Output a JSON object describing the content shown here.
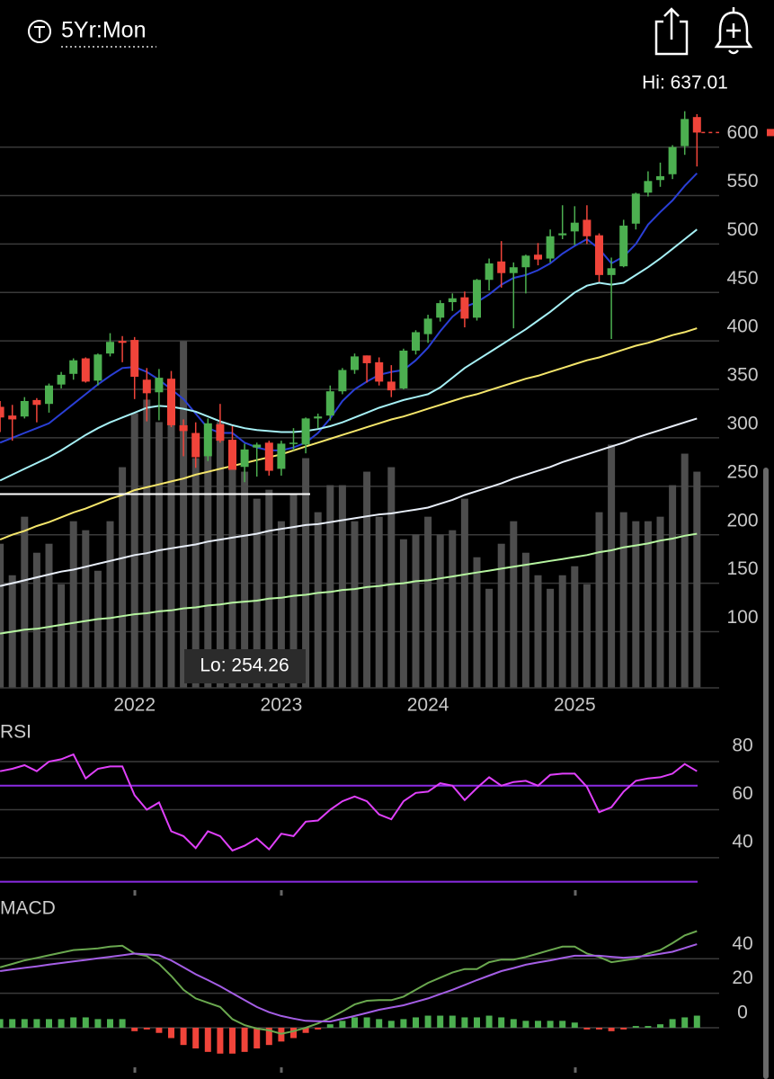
{
  "header": {
    "timeframe": "5Yr:Mon"
  },
  "chart_data": [
    {
      "type": "candlestick",
      "annotations": [
        "Hi: 637.01",
        "Lo: 254.26"
      ],
      "categories": [
        null,
        null,
        null,
        null,
        null,
        null,
        null,
        null,
        null,
        null,
        null,
        "2022",
        null,
        null,
        null,
        null,
        null,
        null,
        null,
        null,
        null,
        null,
        null,
        "2023",
        null,
        null,
        null,
        null,
        null,
        null,
        null,
        null,
        null,
        null,
        null,
        "2024",
        null,
        null,
        null,
        null,
        null,
        null,
        null,
        null,
        null,
        null,
        null,
        "2025",
        null,
        null,
        null,
        null,
        null,
        null,
        null,
        null,
        null,
        null
      ],
      "open": [
        332,
        323,
        322,
        339,
        335,
        355,
        366,
        382,
        359,
        387,
        400,
        401,
        360,
        347,
        361,
        313,
        305,
        281,
        314,
        298,
        270,
        290,
        295,
        268,
        294,
        293,
        320,
        323,
        348,
        370,
        385,
        378,
        358,
        351,
        390,
        407,
        424,
        440,
        445,
        424,
        463,
        482,
        470,
        476,
        489,
        485,
        509,
        513,
        525,
        509,
        468,
        477,
        521,
        553,
        566,
        572,
        601,
        631
      ],
      "high": [
        338,
        334,
        342,
        341,
        356,
        368,
        382,
        383,
        387,
        408,
        405,
        404,
        372,
        371,
        369,
        319,
        316,
        320,
        335,
        312,
        294,
        295,
        297,
        297,
        310,
        321,
        325,
        354,
        372,
        387,
        385,
        383,
        375,
        392,
        411,
        427,
        442,
        449,
        451,
        464,
        485,
        503,
        481,
        489,
        501,
        515,
        540,
        539,
        540,
        511,
        486,
        525,
        553,
        575,
        584,
        602,
        637.01,
        634
      ],
      "low": [
        306,
        297,
        320,
        316,
        326,
        351,
        360,
        357,
        354,
        384,
        378,
        340,
        317,
        318,
        311,
        281,
        269,
        276,
        295,
        267,
        254.26,
        260,
        261,
        261,
        287,
        284,
        310,
        318,
        345,
        366,
        357,
        354,
        342,
        350,
        386,
        398,
        420,
        431,
        414,
        421,
        452,
        455,
        413,
        449,
        478,
        481,
        505,
        499,
        500,
        461,
        402,
        476,
        515,
        549,
        559,
        567,
        592,
        580
      ],
      "close": [
        321,
        319,
        338,
        334,
        354,
        365,
        380,
        358,
        386,
        399,
        398,
        363,
        346,
        362,
        313,
        307,
        280,
        315,
        297,
        267,
        288,
        293,
        266,
        294,
        295,
        320,
        322,
        348,
        370,
        384,
        377,
        358,
        349,
        390,
        409,
        423,
        439,
        444,
        423,
        463,
        480,
        470,
        476,
        488,
        484,
        508,
        511,
        522,
        508,
        468,
        475,
        519,
        552,
        565,
        570,
        600,
        629,
        615
      ],
      "up_color": "#4caf50",
      "down_color": "#f0443a",
      "volume": [
        160,
        125,
        190,
        150,
        160,
        115,
        185,
        175,
        130,
        185,
        245,
        305,
        320,
        295,
        315,
        385,
        255,
        275,
        295,
        265,
        240,
        210,
        220,
        185,
        215,
        255,
        195,
        225,
        225,
        185,
        240,
        190,
        245,
        165,
        170,
        190,
        170,
        175,
        210,
        145,
        110,
        160,
        185,
        150,
        125,
        110,
        125,
        135,
        115,
        195,
        270,
        195,
        185,
        185,
        190,
        225,
        260,
        240
      ],
      "volume_color": "#4d4d4d",
      "series": [
        {
          "color": "#2a3fd6",
          "values": [
            295,
            300,
            305,
            310,
            315,
            325,
            335,
            345,
            355,
            364,
            372,
            373,
            368,
            360,
            350,
            340,
            325,
            310,
            305,
            305,
            295,
            290,
            287,
            287,
            290,
            295,
            305,
            320,
            338,
            350,
            358,
            365,
            368,
            370,
            380,
            393,
            410,
            425,
            435,
            440,
            448,
            458,
            465,
            468,
            473,
            480,
            490,
            498,
            505,
            495,
            480,
            487,
            500,
            520,
            533,
            545,
            560,
            573
          ]
        },
        {
          "color": "#a6f0f5",
          "values": [
            256,
            262,
            268,
            274,
            280,
            287,
            295,
            303,
            310,
            316,
            321,
            326,
            331,
            333,
            332,
            330,
            327,
            322,
            317,
            313,
            310,
            308,
            307,
            306,
            306,
            307,
            309,
            312,
            316,
            321,
            326,
            331,
            335,
            339,
            342,
            345,
            352,
            362,
            372,
            380,
            388,
            396,
            404,
            412,
            421,
            430,
            440,
            450,
            457,
            460,
            458,
            460,
            468,
            476,
            485,
            495,
            505,
            515
          ]
        },
        {
          "color": "#f5e66b",
          "values": [
            195,
            200,
            204,
            209,
            213,
            218,
            223,
            227,
            232,
            237,
            241,
            246,
            249,
            252,
            255,
            258,
            262,
            265,
            268,
            271,
            274,
            277,
            280,
            283,
            287,
            291,
            295,
            299,
            303,
            307,
            311,
            315,
            319,
            322,
            326,
            330,
            334,
            338,
            342,
            345,
            349,
            353,
            357,
            361,
            364,
            368,
            372,
            376,
            380,
            383,
            387,
            391,
            395,
            398,
            402,
            406,
            409,
            413
          ]
        },
        {
          "color": "#e8eef8",
          "values": [
            147,
            150,
            153,
            156,
            159,
            162,
            164,
            167,
            170,
            173,
            176,
            179,
            181,
            184,
            186,
            188,
            190,
            193,
            195,
            197,
            199,
            201,
            204,
            206,
            208,
            210,
            211,
            213,
            215,
            217,
            219,
            221,
            222,
            224,
            226,
            228,
            232,
            236,
            241,
            245,
            249,
            253,
            258,
            262,
            266,
            270,
            275,
            279,
            283,
            287,
            291,
            295,
            300,
            304,
            308,
            312,
            316,
            320
          ]
        },
        {
          "color": "#b6f5a0",
          "values": [
            98,
            100,
            102,
            103,
            105,
            107,
            109,
            111,
            113,
            114,
            116,
            118,
            119,
            121,
            122,
            124,
            125,
            127,
            128,
            130,
            131,
            132,
            134,
            135,
            137,
            138,
            140,
            141,
            143,
            144,
            146,
            147,
            149,
            150,
            152,
            153,
            155,
            157,
            159,
            161,
            163,
            165,
            167,
            169,
            171,
            173,
            175,
            177,
            179,
            182,
            184,
            187,
            189,
            191,
            194,
            196,
            199,
            201
          ]
        }
      ],
      "level": 242,
      "level_color": "#ffffff",
      "ylim": [
        42,
        659
      ],
      "yticks": [
        100,
        150,
        200,
        250,
        300,
        350,
        400,
        450,
        500,
        550,
        600
      ],
      "grid": true
    },
    {
      "type": "rsi",
      "title": "RSI",
      "values": [
        76,
        77,
        78.5,
        76,
        80,
        81,
        83,
        73,
        77,
        78,
        78,
        66,
        60,
        63,
        51,
        49,
        44,
        51,
        49,
        43,
        45,
        48,
        43.5,
        50,
        49,
        55,
        55.5,
        60,
        63.5,
        65.5,
        63.5,
        58,
        56,
        63.5,
        67,
        67.5,
        71,
        70,
        64,
        69,
        73.5,
        70,
        71.5,
        72,
        70,
        74.5,
        75,
        75,
        69.5,
        59,
        61,
        67.5,
        72,
        73,
        73.5,
        75,
        79,
        76
      ],
      "color": "#e040fb",
      "bands": [
        70,
        30
      ],
      "band_color": "#8a2be2",
      "ylim": [
        26.5,
        97.6
      ],
      "yticks": [
        40,
        60,
        80
      ],
      "grid": true
    },
    {
      "type": "macd",
      "title": "MACD",
      "series": [
        {
          "color": "#6aa84f",
          "values": [
            35,
            37,
            39,
            40.5,
            42,
            43.5,
            45,
            45.5,
            46,
            47,
            47.5,
            43,
            41.5,
            37,
            30,
            22,
            17,
            14.5,
            12,
            5,
            1.5,
            -0.5,
            -1.5,
            -3.5,
            -2,
            0,
            2.5,
            5.7,
            9.4,
            13.5,
            15.6,
            16,
            16,
            18,
            22,
            26,
            29,
            32,
            34,
            34,
            38,
            39.5,
            39.5,
            41,
            43,
            45,
            47,
            47,
            43,
            41,
            38,
            39,
            40,
            43,
            45,
            49,
            53.5,
            56
          ]
        },
        {
          "color": "#a45ee5",
          "values": [
            32.8,
            33.8,
            34.7,
            35.6,
            36.6,
            37.5,
            38.4,
            39.3,
            40.2,
            41.1,
            42,
            43,
            42.5,
            42,
            39,
            35,
            31,
            27.6,
            24,
            20,
            16,
            12,
            9,
            6.8,
            5.3,
            4,
            3.8,
            3.6,
            5.2,
            6.8,
            8.6,
            10.4,
            11.7,
            13,
            15,
            17,
            19.5,
            22,
            24.8,
            27.6,
            30.2,
            32.8,
            34.6,
            36.5,
            37.8,
            39,
            40.4,
            41.7,
            41.7,
            41.7,
            41.1,
            40.6,
            41.1,
            41.7,
            42.8,
            44,
            46.2,
            48.4
          ]
        }
      ],
      "histogram": [
        5,
        5,
        5,
        5,
        5,
        5,
        6,
        6,
        5,
        5,
        5,
        -2,
        -1,
        -3,
        -6,
        -10,
        -12,
        -14,
        -15,
        -15,
        -14,
        -12,
        -10,
        -8,
        -6,
        -3,
        -1,
        2,
        4,
        6,
        6,
        5,
        4,
        5,
        6,
        7,
        7,
        7,
        6,
        6,
        7,
        6,
        5,
        4,
        4,
        4,
        4,
        3,
        -1,
        -1,
        -2,
        -1,
        1,
        1,
        2,
        5,
        6,
        7
      ],
      "up_color": "#4caf50",
      "down_color": "#f0443a",
      "ylim": [
        -24.5,
        74.5
      ],
      "yticks": [
        0,
        20,
        40
      ],
      "grid": true
    }
  ]
}
